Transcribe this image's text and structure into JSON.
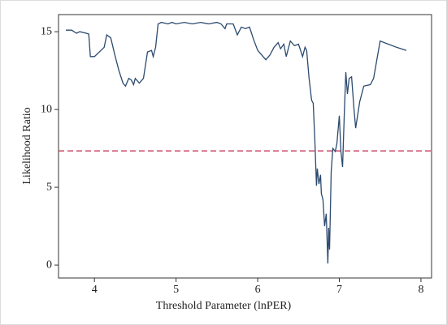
{
  "chart_data": {
    "type": "line",
    "xlabel": "Threshold Parameter (lnPER)",
    "ylabel": "Likelihood Ratio",
    "xlim": [
      3.56,
      8.13
    ],
    "ylim": [
      -0.83,
      16.1
    ],
    "xticks": [
      4,
      5,
      6,
      7,
      8
    ],
    "yticks": [
      0,
      5,
      10,
      15
    ],
    "hline": {
      "value": 7.34,
      "color": "#c8385a"
    },
    "series": [
      {
        "color": "#2c4a6e",
        "x": [
          3.65,
          3.72,
          3.78,
          3.82,
          3.9,
          3.93,
          3.95,
          4.0,
          4.08,
          4.12,
          4.15,
          4.2,
          4.25,
          4.3,
          4.35,
          4.38,
          4.42,
          4.45,
          4.48,
          4.5,
          4.55,
          4.6,
          4.65,
          4.7,
          4.72,
          4.75,
          4.78,
          4.82,
          4.9,
          4.95,
          5.0,
          5.1,
          5.2,
          5.3,
          5.4,
          5.5,
          5.55,
          5.6,
          5.62,
          5.7,
          5.75,
          5.8,
          5.85,
          5.9,
          5.95,
          6.0,
          6.05,
          6.1,
          6.15,
          6.2,
          6.25,
          6.28,
          6.32,
          6.35,
          6.4,
          6.45,
          6.5,
          6.55,
          6.58,
          6.6,
          6.63,
          6.66,
          6.68,
          6.7,
          6.72,
          6.73,
          6.75,
          6.77,
          6.78,
          6.8,
          6.82,
          6.84,
          6.86,
          6.87,
          6.88,
          6.9,
          6.92,
          6.95,
          6.97,
          7.0,
          7.02,
          7.04,
          7.06,
          7.08,
          7.1,
          7.12,
          7.15,
          7.18,
          7.2,
          7.25,
          7.3,
          7.38,
          7.42,
          7.5,
          7.6,
          7.7,
          7.82
        ],
        "values": [
          15.1,
          15.1,
          14.9,
          15.0,
          14.9,
          14.85,
          13.4,
          13.4,
          13.8,
          14.0,
          14.8,
          14.6,
          13.5,
          12.5,
          11.7,
          11.5,
          12.0,
          11.9,
          11.6,
          12.0,
          11.7,
          12.0,
          13.7,
          13.8,
          13.4,
          14.0,
          15.5,
          15.6,
          15.5,
          15.6,
          15.5,
          15.6,
          15.5,
          15.6,
          15.5,
          15.6,
          15.5,
          15.2,
          15.5,
          15.5,
          14.8,
          15.3,
          15.2,
          15.3,
          14.5,
          13.8,
          13.5,
          13.2,
          13.5,
          14.0,
          14.3,
          13.9,
          14.2,
          13.4,
          14.4,
          14.1,
          14.2,
          13.4,
          14.0,
          13.8,
          12.0,
          10.6,
          10.4,
          8.0,
          5.1,
          6.2,
          5.2,
          5.8,
          4.6,
          4.2,
          2.5,
          3.3,
          0.1,
          2.4,
          1.0,
          6.0,
          7.5,
          7.3,
          7.8,
          9.6,
          7.3,
          6.3,
          9.5,
          12.4,
          11.0,
          12.0,
          12.1,
          10.0,
          8.8,
          10.5,
          11.5,
          11.6,
          12.0,
          14.4,
          14.2,
          14.0,
          13.8
        ]
      }
    ]
  }
}
